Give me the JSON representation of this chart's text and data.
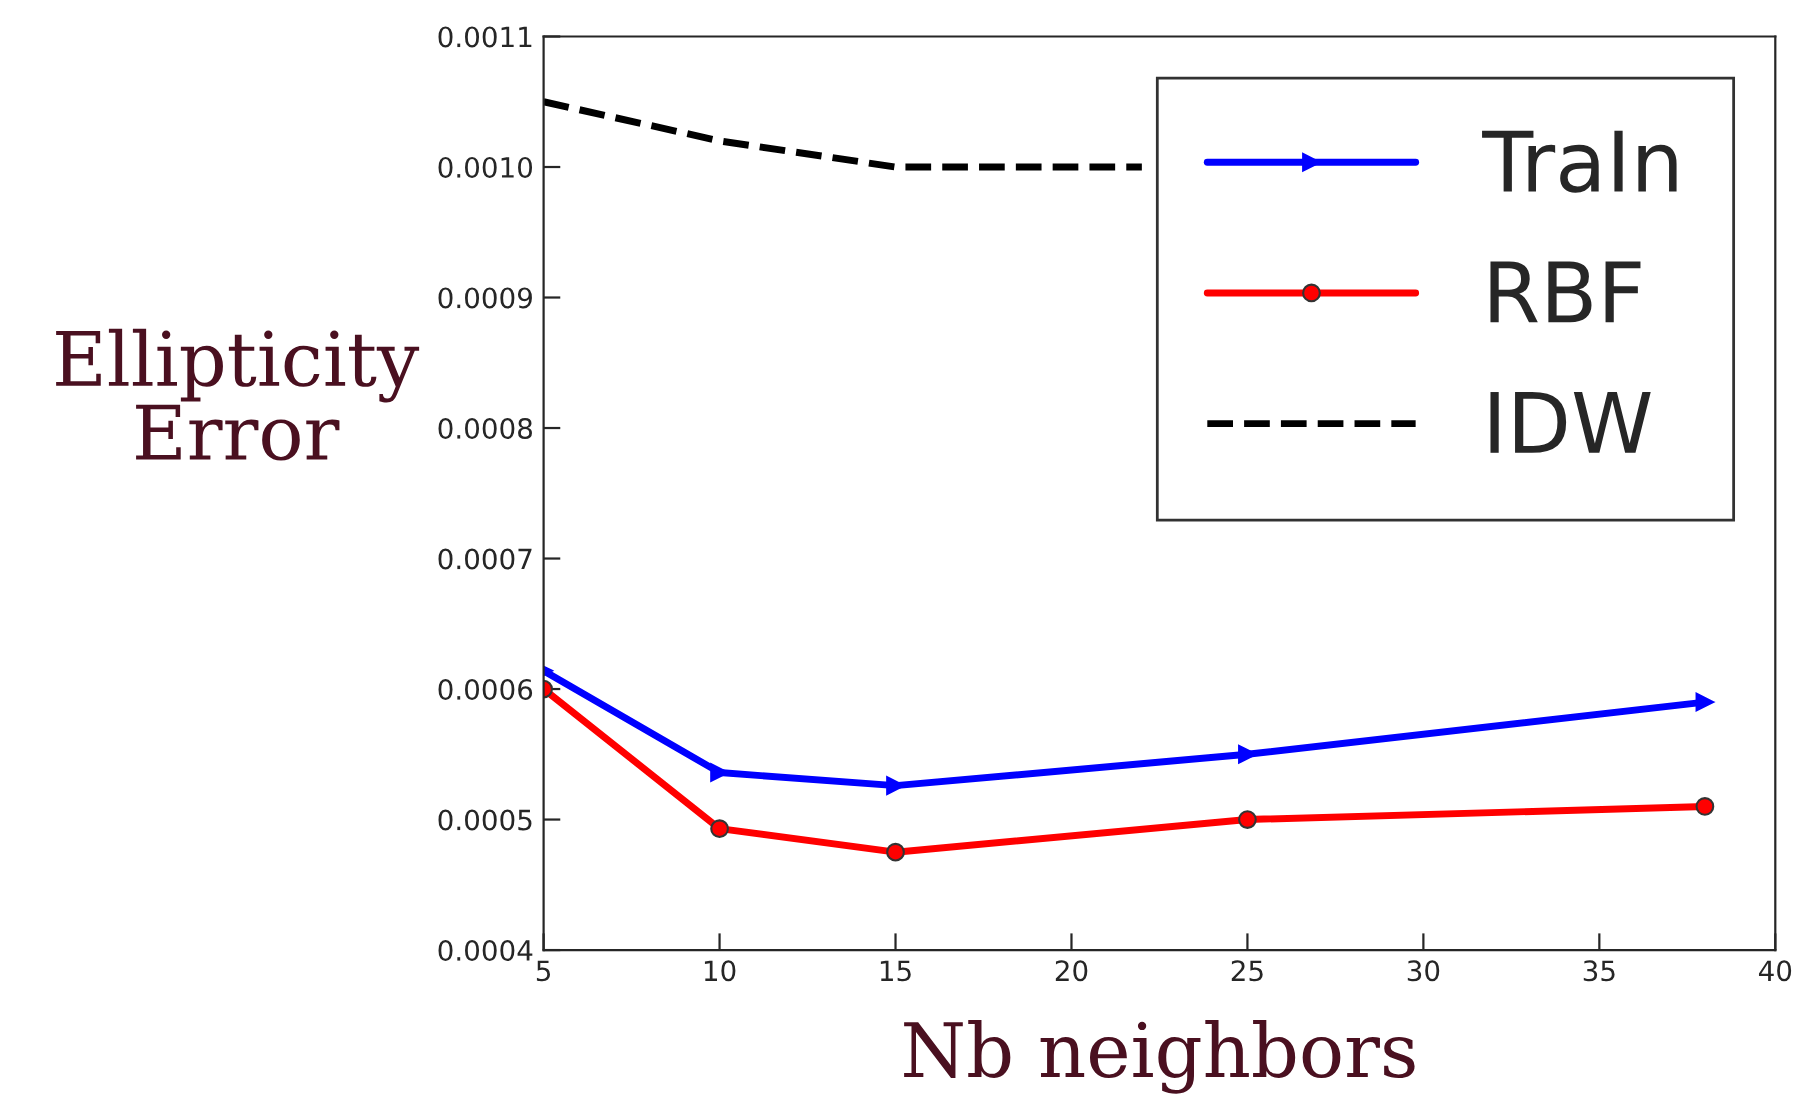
{
  "chart_data": {
    "type": "line",
    "xlabel": "Nb neighbors",
    "ylabel": "Ellipticity\nError",
    "series": [
      {
        "name": "TraIn",
        "color": "#0000ff",
        "marker": "triangle",
        "line_style": "solid",
        "x": [
          5,
          10,
          15,
          25,
          38
        ],
        "values": [
          0.000614,
          0.000536,
          0.000526,
          0.00055,
          0.00059
        ]
      },
      {
        "name": "RBF",
        "color": "#ff0000",
        "marker": "circle",
        "line_style": "solid",
        "x": [
          5,
          10,
          15,
          25,
          38
        ],
        "values": [
          0.0006,
          0.000493,
          0.000475,
          0.0005,
          0.00051
        ]
      },
      {
        "name": "IDW",
        "color": "#000000",
        "marker": "none",
        "line_style": "dashed",
        "x": [
          5,
          10,
          15,
          22
        ],
        "values": [
          0.00105,
          0.00102,
          0.001,
          0.001
        ]
      }
    ],
    "xlim": [
      5,
      40
    ],
    "xticks": [
      5,
      10,
      15,
      20,
      25,
      30,
      35,
      40
    ],
    "ylim": [
      0.0004,
      0.0011
    ],
    "yticks": [
      0.0004,
      0.0005,
      0.0006,
      0.0007,
      0.0008,
      0.0009,
      {
        "value": 0.001,
        "label": "0.0010"
      },
      0.0011
    ],
    "grid": false,
    "legend": "top right"
  }
}
